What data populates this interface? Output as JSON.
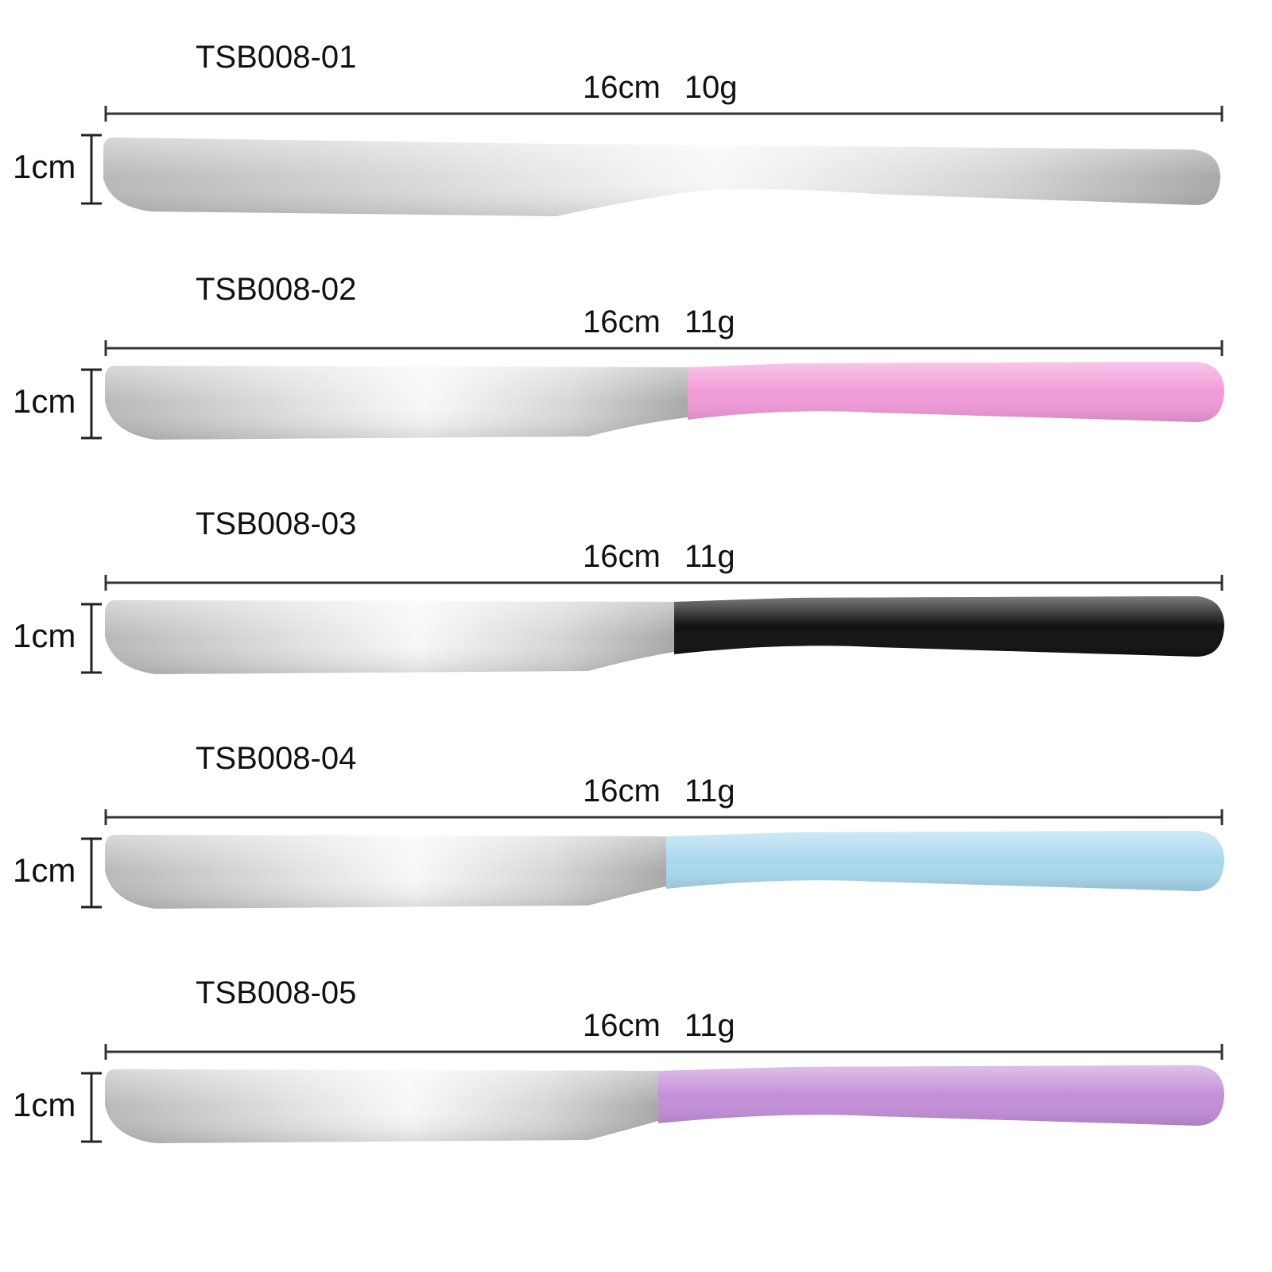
{
  "products": [
    {
      "model": "TSB008-01",
      "length": "16cm",
      "weight": "10g",
      "width": "1cm",
      "handle": "none",
      "handle_color": null
    },
    {
      "model": "TSB008-02",
      "length": "16cm",
      "weight": "11g",
      "width": "1cm",
      "handle": "plastic",
      "handle_color": "#f19ad8"
    },
    {
      "model": "TSB008-03",
      "length": "16cm",
      "weight": "11g",
      "width": "1cm",
      "handle": "plastic",
      "handle_color": "#111111"
    },
    {
      "model": "TSB008-04",
      "length": "16cm",
      "weight": "11g",
      "width": "1cm",
      "handle": "plastic",
      "handle_color": "#a9d8ee"
    },
    {
      "model": "TSB008-05",
      "length": "16cm",
      "weight": "11g",
      "width": "1cm",
      "handle": "plastic",
      "handle_color": "#c48fd9"
    }
  ],
  "colors": {
    "steel_dark": "#b4b4b4",
    "steel_light": "#f6f6f6",
    "line": "#333333"
  }
}
